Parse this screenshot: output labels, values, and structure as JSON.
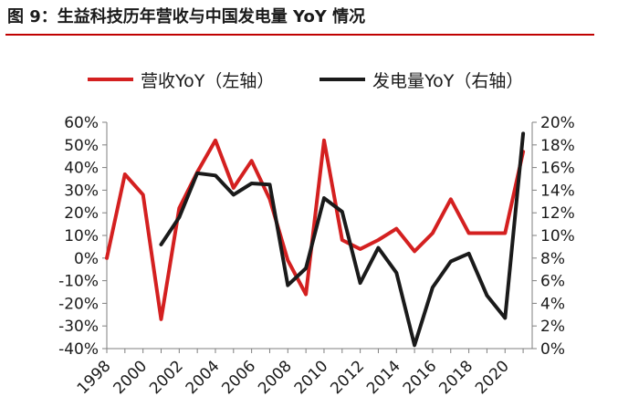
{
  "figure": {
    "title": "图 9：生益科技历年营收与中国发电量 YoY 情况"
  },
  "chart_data": {
    "type": "line",
    "title": "图 9：生益科技历年营收与中国发电量 YoY 情况",
    "x_ticks": [
      "1998",
      "2000",
      "2002",
      "2004",
      "2006",
      "2008",
      "2010",
      "2012",
      "2014",
      "2016",
      "2018",
      "2020"
    ],
    "y_left": {
      "ticks": [
        "60%",
        "50%",
        "40%",
        "30%",
        "20%",
        "10%",
        "0%",
        "-10%",
        "-20%",
        "-30%",
        "-40%"
      ],
      "range": [
        -40,
        60
      ]
    },
    "y_right": {
      "ticks": [
        "20%",
        "18%",
        "16%",
        "14%",
        "12%",
        "10%",
        "8%",
        "6%",
        "4%",
        "2%",
        "0%"
      ],
      "range": [
        0,
        20
      ]
    },
    "grid": false,
    "legend_position": "top",
    "series": [
      {
        "name": "营收YoY（左轴）",
        "axis": "left",
        "color": "#d42020",
        "x": [
          1998,
          1999,
          2000,
          2001,
          2002,
          2003,
          2004,
          2005,
          2006,
          2007,
          2008,
          2009,
          2010,
          2011,
          2012,
          2013,
          2014,
          2015,
          2016,
          2017,
          2018,
          2019,
          2020,
          2021
        ],
        "values": [
          0,
          37,
          28,
          -27,
          22,
          38,
          52,
          31,
          43,
          26,
          -1,
          -16,
          52,
          8,
          4,
          8,
          13,
          3,
          11,
          26,
          11,
          11,
          11,
          47
        ]
      },
      {
        "name": "发电量YoY（右轴）",
        "axis": "right",
        "color": "#1a1a1a",
        "x": [
          2001,
          2002,
          2003,
          2004,
          2005,
          2006,
          2007,
          2008,
          2009,
          2010,
          2011,
          2012,
          2013,
          2014,
          2015,
          2016,
          2017,
          2018,
          2019,
          2020,
          2021
        ],
        "values": [
          9.2,
          11.6,
          15.5,
          15.3,
          13.6,
          14.6,
          14.5,
          5.6,
          7.1,
          13.3,
          12.1,
          5.8,
          8.9,
          6.7,
          0.3,
          5.4,
          7.7,
          8.4,
          4.7,
          2.7,
          19.0
        ]
      }
    ]
  }
}
